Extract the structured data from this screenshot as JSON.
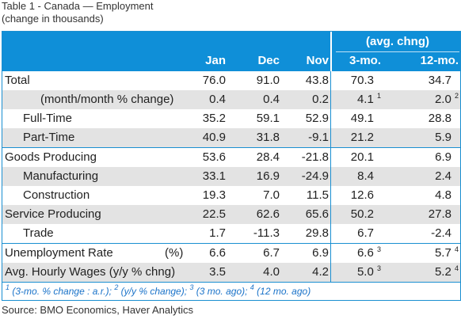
{
  "caption": {
    "title": "Table 1 - Canada — Employment",
    "subtitle": "(change in thousands)"
  },
  "header": {
    "avg_label": "(avg. chng)",
    "columns": [
      "Jan",
      "Dec",
      "Nov",
      "3-mo.",
      "12-mo."
    ]
  },
  "rows": [
    {
      "label": "Total",
      "indent": 0,
      "shade": false,
      "sep": false,
      "values": [
        "76.0",
        "91.0",
        "43.8",
        "70.3",
        "34.7"
      ],
      "sup4": "",
      "sup5": ""
    },
    {
      "label": "(month/month % change)",
      "indent": 2,
      "shade": true,
      "sep": false,
      "values": [
        "0.4",
        "0.4",
        "0.2",
        "4.1",
        "2.0"
      ],
      "sup4": "1",
      "sup5": "2"
    },
    {
      "label": "Full-Time",
      "indent": 1,
      "shade": false,
      "sep": false,
      "values": [
        "35.2",
        "59.1",
        "52.9",
        "49.1",
        "28.8"
      ],
      "sup4": "",
      "sup5": ""
    },
    {
      "label": "Part-Time",
      "indent": 1,
      "shade": true,
      "sep": false,
      "values": [
        "40.9",
        "31.8",
        "-9.1",
        "21.2",
        "5.9"
      ],
      "sup4": "",
      "sup5": ""
    },
    {
      "label": "Goods Producing",
      "indent": 0,
      "shade": false,
      "sep": true,
      "values": [
        "53.6",
        "28.4",
        "-21.8",
        "20.1",
        "6.9"
      ],
      "sup4": "",
      "sup5": ""
    },
    {
      "label": "Manufacturing",
      "indent": 1,
      "shade": true,
      "sep": false,
      "values": [
        "33.1",
        "16.9",
        "-24.9",
        "8.4",
        "2.4"
      ],
      "sup4": "",
      "sup5": ""
    },
    {
      "label": "Construction",
      "indent": 1,
      "shade": false,
      "sep": false,
      "values": [
        "19.3",
        "7.0",
        "11.5",
        "12.6",
        "4.8"
      ],
      "sup4": "",
      "sup5": ""
    },
    {
      "label": "Service Producing",
      "indent": 0,
      "shade": true,
      "sep": false,
      "values": [
        "22.5",
        "62.6",
        "65.6",
        "50.2",
        "27.8"
      ],
      "sup4": "",
      "sup5": ""
    },
    {
      "label": "Trade",
      "indent": 1,
      "shade": false,
      "sep": false,
      "values": [
        "1.7",
        "-11.3",
        "29.8",
        "6.7",
        "-2.4"
      ],
      "sup4": "",
      "sup5": ""
    },
    {
      "label": "Unemployment Rate",
      "pct": "(%)",
      "indent": 0,
      "shade": false,
      "sep": true,
      "values": [
        "6.6",
        "6.7",
        "6.9",
        "6.6",
        "5.7"
      ],
      "sup4": "3",
      "sup5": "4"
    },
    {
      "label": "Avg. Hourly Wages (y/y % chng)",
      "indent": 0,
      "shade": true,
      "sep": false,
      "values": [
        "3.5",
        "4.0",
        "4.2",
        "5.0",
        "5.2"
      ],
      "sup4": "3",
      "sup5": "4"
    }
  ],
  "footnotes": [
    {
      "num": "1",
      "text": "(3-mo. % change : a.r.);"
    },
    {
      "num": "2",
      "text": "(y/y % change);"
    },
    {
      "num": "3",
      "text": "(3 mo. ago);"
    },
    {
      "num": "4",
      "text": "(12 mo. ago)"
    }
  ],
  "source": "Source: BMO Economics, Haver Analytics",
  "colors": {
    "header_bg": "#0f8fd8",
    "shade_bg": "#e3e3e3",
    "accent": "#1a8fd1"
  }
}
